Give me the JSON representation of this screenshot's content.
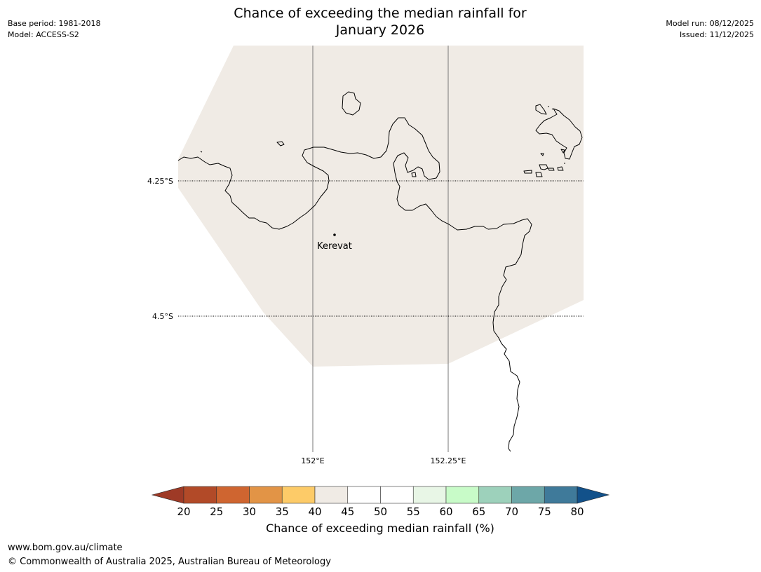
{
  "header": {
    "title_line1": "Chance of exceeding the median rainfall for",
    "title_line2": "January 2026",
    "base_period": "Base period: 1981-2018",
    "model": "Model: ACCESS-S2",
    "model_run": "Model run: 08/12/2025",
    "issued": "Issued: 11/12/2025"
  },
  "map": {
    "land_fill_color": "#f0ebe5",
    "coastline_color": "#000000",
    "place_label": "Kerevat",
    "lat_labels": [
      "4.25°S",
      "4.5°S"
    ],
    "lon_labels": [
      "152°E",
      "152.25°E"
    ]
  },
  "colorbar": {
    "label": "Chance of exceeding median rainfall (%)",
    "ticks": [
      "20",
      "25",
      "30",
      "35",
      "40",
      "45",
      "50",
      "55",
      "60",
      "65",
      "70",
      "75",
      "80"
    ],
    "low_extend_color": "#9e3a26",
    "high_extend_color": "#12518a",
    "colors": [
      "#b24a28",
      "#cf6530",
      "#e29446",
      "#fdcb68",
      "#f0ebe5",
      "#ffffff",
      "#ffffff",
      "#e8f6e6",
      "#c8fbc8",
      "#9dd1bb",
      "#6da7a8",
      "#3f7a9a"
    ]
  },
  "footer": {
    "url": "www.bom.gov.au/climate",
    "copyright": "© Commonwealth of Australia 2025, Australian Bureau of Meteorology"
  }
}
